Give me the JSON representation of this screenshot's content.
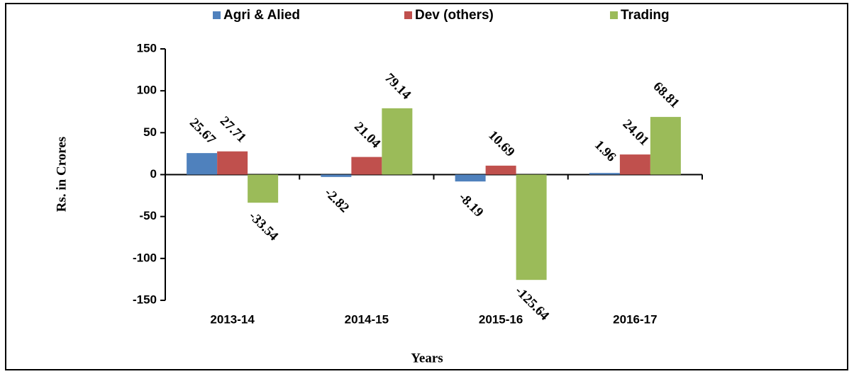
{
  "chart_data": {
    "type": "bar",
    "x_label": "Years",
    "y_label": "Rs. in Crores",
    "categories": [
      "2013-14",
      "2014-15",
      "2015-16",
      "2016-17"
    ],
    "series": [
      {
        "name": "Agri & Alied",
        "color": "#4f81bd",
        "values": [
          25.67,
          -2.82,
          -8.19,
          1.96
        ]
      },
      {
        "name": "Dev (others)",
        "color": "#c0504d",
        "values": [
          27.71,
          21.04,
          10.69,
          24.01
        ]
      },
      {
        "name": "Trading",
        "color": "#9bbb59",
        "values": [
          -33.54,
          79.14,
          -125.64,
          68.81
        ]
      }
    ],
    "ylim": [
      -150,
      150
    ],
    "yticks": [
      -150,
      -100,
      -50,
      0,
      50,
      100,
      150
    ],
    "legend": "top"
  }
}
